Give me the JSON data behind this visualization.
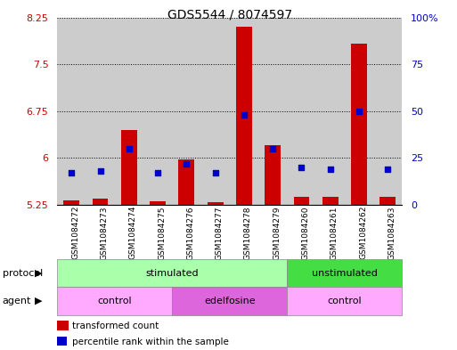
{
  "title": "GDS5544 / 8074597",
  "samples": [
    "GSM1084272",
    "GSM1084273",
    "GSM1084274",
    "GSM1084275",
    "GSM1084276",
    "GSM1084277",
    "GSM1084278",
    "GSM1084279",
    "GSM1084260",
    "GSM1084261",
    "GSM1084262",
    "GSM1084263"
  ],
  "transformed_count": [
    5.32,
    5.35,
    6.45,
    5.31,
    5.97,
    5.29,
    8.1,
    6.2,
    5.37,
    5.38,
    7.83,
    5.38
  ],
  "percentile_rank": [
    17,
    18,
    30,
    17,
    22,
    17,
    48,
    30,
    20,
    19,
    50,
    19
  ],
  "ylim_left": [
    5.25,
    8.25
  ],
  "ylim_right": [
    0,
    100
  ],
  "yticks_left": [
    5.25,
    6.0,
    6.75,
    7.5,
    8.25
  ],
  "yticks_right": [
    0,
    25,
    50,
    75,
    100
  ],
  "ytick_labels_left": [
    "5.25",
    "6",
    "6.75",
    "7.5",
    "8.25"
  ],
  "ytick_labels_right": [
    "0",
    "25",
    "50",
    "75",
    "100%"
  ],
  "bar_color": "#cc0000",
  "dot_color": "#0000cc",
  "bar_width": 0.55,
  "baseline": 5.25,
  "protocol_groups": [
    {
      "label": "stimulated",
      "start": 0,
      "end": 7,
      "color": "#aaffaa"
    },
    {
      "label": "unstimulated",
      "start": 8,
      "end": 11,
      "color": "#44dd44"
    }
  ],
  "agent_groups": [
    {
      "label": "control",
      "start": 0,
      "end": 3,
      "color": "#ffaaff"
    },
    {
      "label": "edelfosine",
      "start": 4,
      "end": 7,
      "color": "#dd66dd"
    },
    {
      "label": "control",
      "start": 8,
      "end": 11,
      "color": "#ffaaff"
    }
  ],
  "protocol_label": "protocol",
  "agent_label": "agent",
  "legend_red": "transformed count",
  "legend_blue": "percentile rank within the sample",
  "ax_label_color_left": "#cc0000",
  "ax_label_color_right": "#0000cc",
  "bar_section_bg": "#cccccc",
  "grid_color": "#000000"
}
